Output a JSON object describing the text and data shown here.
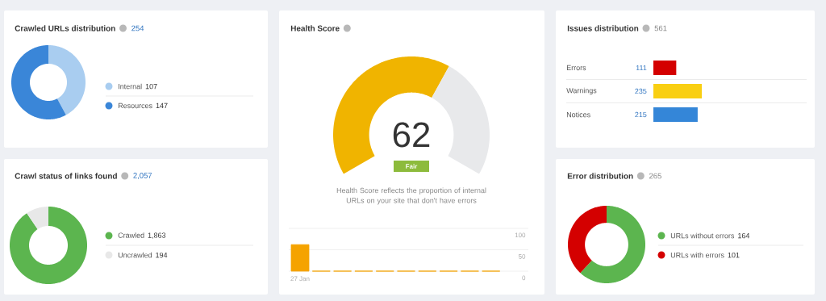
{
  "chart_data": [
    {
      "type": "donut",
      "title": "Crawled URLs distribution",
      "subtitle": "254",
      "categories": [
        "Internal",
        "Resources"
      ],
      "values": [
        107,
        147
      ],
      "colors": [
        "#a9cdf0",
        "#3a86d8"
      ],
      "legend": "right",
      "data_labels": true
    },
    {
      "type": "donut",
      "title": "Health Score",
      "categories": [
        null,
        null
      ],
      "values": [
        62,
        38
      ],
      "colors": [
        "#f0b400",
        "#e8e9eb"
      ],
      "value_labels": [
        "62",
        null
      ],
      "annotations": [
        "Fair",
        "Health Score reflects the proportion of internal URLs on your site that don't have errors"
      ]
    },
    {
      "type": "bar",
      "categories": [
        "27 Jan",
        null,
        null,
        null,
        null,
        null,
        null,
        null,
        null,
        null
      ],
      "values": [
        62,
        0,
        0,
        0,
        0,
        0,
        0,
        0,
        0,
        0
      ],
      "color": "#f5a300",
      "ylim": [
        0,
        100
      ],
      "yticks": [
        0,
        50,
        100
      ],
      "grid": "y"
    },
    {
      "type": "bar",
      "orientation": "horizontal",
      "title": "Issues distribution",
      "subtitle": "561",
      "categories": [
        "Errors",
        "Warnings",
        "Notices"
      ],
      "values": [
        111,
        235,
        215
      ],
      "colors": [
        "#d40000",
        "#f9cf12",
        "#3486d8"
      ],
      "data_labels": true
    },
    {
      "type": "donut",
      "title": "Crawl status of links found",
      "subtitle": "2,057",
      "categories": [
        "Crawled",
        "Uncrawled"
      ],
      "values": [
        1863,
        194
      ],
      "colors": [
        "#5cb54f",
        "#e8e8e8"
      ],
      "value_labels": [
        "1,863",
        "194"
      ],
      "legend": "right"
    },
    {
      "type": "donut",
      "title": "Error distribution",
      "subtitle": "265",
      "categories": [
        "URLs without errors",
        "URLs with errors"
      ],
      "values": [
        164,
        101
      ],
      "colors": [
        "#5cb54f",
        "#d40000"
      ],
      "legend": "right",
      "data_labels": true
    }
  ]
}
